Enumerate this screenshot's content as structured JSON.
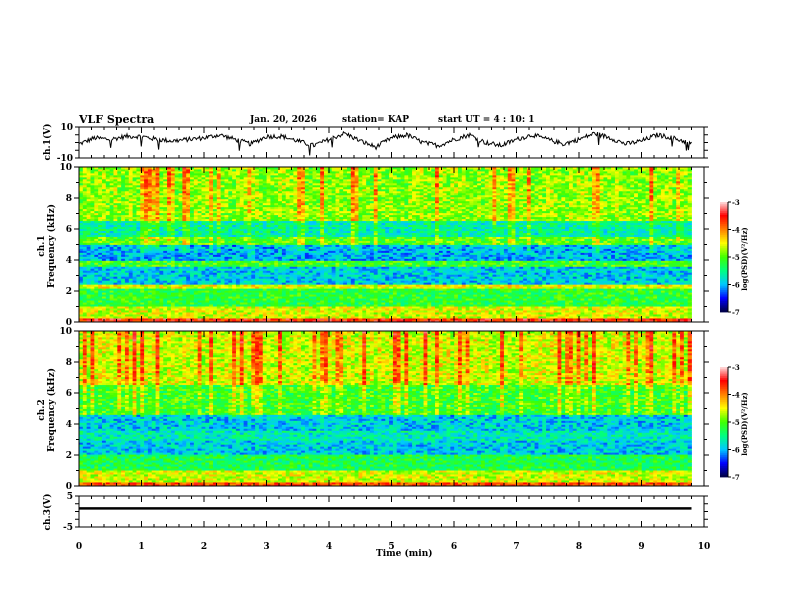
{
  "header": {
    "title": "VLF Spectra",
    "date": "Jan. 20, 2026",
    "station": "station= KAP",
    "start": "start UT =  4 : 10: 1"
  },
  "colors": {
    "axis": "#000000",
    "colormap": [
      "#000040",
      "#0000ff",
      "#00c8ff",
      "#00ff80",
      "#40ff00",
      "#ffff00",
      "#ff8000",
      "#ff0000",
      "#ffe0e0"
    ]
  },
  "chart_data": [
    {
      "type": "line",
      "name": "ch1-waveform",
      "ylabel": "ch.1(V)",
      "ylim": [
        -10,
        10
      ],
      "yticklabels": [
        "10",
        "-10"
      ],
      "xlim": [
        0,
        10
      ],
      "x_data_end": 9.8,
      "description_values": "oscillating signal approx. between -4 and 6 V with ~1 min period",
      "x": [
        0,
        0.25,
        0.5,
        0.75,
        1,
        1.25,
        1.5,
        1.75,
        2,
        2.25,
        2.5,
        2.75,
        3,
        3.25,
        3.5,
        3.75,
        4,
        4.25,
        4.5,
        4.75,
        5,
        5.25,
        5.5,
        5.75,
        6,
        6.25,
        6.5,
        6.75,
        7,
        7.25,
        7.5,
        7.75,
        8,
        8.25,
        8.5,
        8.75,
        9,
        9.25,
        9.5,
        9.75
      ],
      "y": [
        -1,
        3,
        2,
        4,
        4,
        2,
        1,
        2,
        3,
        5,
        2,
        -1,
        4,
        4,
        1,
        -2,
        2,
        6,
        1,
        -3,
        3,
        5,
        0,
        -2,
        2,
        5,
        0,
        -2,
        2,
        5,
        2,
        -1,
        2,
        6,
        3,
        -1,
        1,
        5,
        3,
        0
      ]
    },
    {
      "type": "heatmap",
      "name": "ch1-spectrogram",
      "ylabel": "ch.1\nFrequency (kHz)",
      "ylabel_line1": "ch.1",
      "ylabel_line2": "Frequency (kHz)",
      "ylim": [
        0,
        10
      ],
      "yticklabels": [
        "0",
        "2",
        "4",
        "6",
        "8",
        "10"
      ],
      "xlim": [
        0,
        10
      ],
      "x_data_end": 9.8,
      "colorbar": {
        "label": "log(PSD)(V²/Hz)",
        "range": [
          -7,
          -3
        ],
        "ticklabels": [
          "-3",
          "-4",
          "-5",
          "-6",
          "-7"
        ]
      },
      "band_levels": [
        {
          "f0": 0,
          "f1": 0.3,
          "level": -3.6
        },
        {
          "f0": 0.3,
          "f1": 1.0,
          "level": -4.6
        },
        {
          "f0": 1.0,
          "f1": 2.2,
          "level": -5.2
        },
        {
          "f0": 2.2,
          "f1": 2.5,
          "level": -4.5
        },
        {
          "f0": 2.5,
          "f1": 3.6,
          "level": -5.9
        },
        {
          "f0": 3.6,
          "f1": 4.0,
          "level": -5.1
        },
        {
          "f0": 4.0,
          "f1": 5.0,
          "level": -6.0
        },
        {
          "f0": 5.0,
          "f1": 5.5,
          "level": -5.0
        },
        {
          "f0": 5.5,
          "f1": 6.5,
          "level": -5.6
        },
        {
          "f0": 6.5,
          "f1": 10,
          "level": -4.8
        }
      ]
    },
    {
      "type": "heatmap",
      "name": "ch2-spectrogram",
      "ylabel_line1": "ch.2",
      "ylabel_line2": "Frequency (kHz)",
      "ylim": [
        0,
        10
      ],
      "yticklabels": [
        "0",
        "2",
        "4",
        "6",
        "8",
        "10"
      ],
      "xlim": [
        0,
        10
      ],
      "x_data_end": 9.8,
      "colorbar": {
        "label": "log(PSD)(V²/Hz)",
        "range": [
          -7,
          -3
        ],
        "ticklabels": [
          "-3",
          "-4",
          "-5",
          "-6",
          "-7"
        ]
      },
      "band_levels": [
        {
          "f0": 0,
          "f1": 0.3,
          "level": -3.8
        },
        {
          "f0": 0.3,
          "f1": 1.0,
          "level": -4.6
        },
        {
          "f0": 1.0,
          "f1": 2.0,
          "level": -5.3
        },
        {
          "f0": 2.0,
          "f1": 3.0,
          "level": -5.9
        },
        {
          "f0": 3.0,
          "f1": 3.6,
          "level": -5.7
        },
        {
          "f0": 3.6,
          "f1": 4.6,
          "level": -5.9
        },
        {
          "f0": 4.6,
          "f1": 6.5,
          "level": -5.1
        },
        {
          "f0": 6.5,
          "f1": 10,
          "level": -4.6
        }
      ]
    },
    {
      "type": "line",
      "name": "ch3-waveform",
      "ylabel": "ch.3(V)",
      "ylim": [
        -5,
        5
      ],
      "yticklabels": [
        "5",
        "-5"
      ],
      "xlim": [
        0,
        10
      ],
      "x_data_end": 9.8,
      "level_band": [
        0.6,
        1.4
      ],
      "xlabel": "Time (min)",
      "xticklabels": [
        "0",
        "1",
        "2",
        "3",
        "4",
        "5",
        "6",
        "7",
        "8",
        "9",
        "10"
      ]
    }
  ]
}
